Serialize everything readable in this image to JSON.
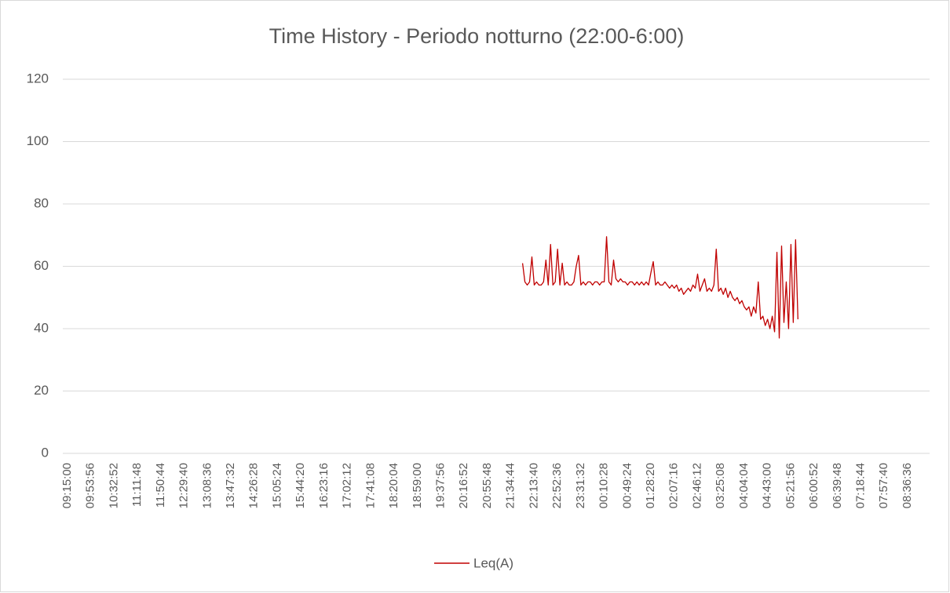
{
  "chart_data": {
    "type": "line",
    "title": "Time History - Periodo notturno (22:00-6:00)",
    "categories": [
      "09:15:00",
      null,
      null,
      null,
      null,
      null,
      null,
      null,
      null,
      null,
      "09:53:56",
      null,
      null,
      null,
      null,
      null,
      null,
      null,
      null,
      null,
      "10:32:52",
      null,
      null,
      null,
      null,
      null,
      null,
      null,
      null,
      null,
      "11:11:48",
      null,
      null,
      null,
      null,
      null,
      null,
      null,
      null,
      null,
      "11:50:44",
      null,
      null,
      null,
      null,
      null,
      null,
      null,
      null,
      null,
      "12:29:40",
      null,
      null,
      null,
      null,
      null,
      null,
      null,
      null,
      null,
      "13:08:36",
      null,
      null,
      null,
      null,
      null,
      null,
      null,
      null,
      null,
      "13:47:32",
      null,
      null,
      null,
      null,
      null,
      null,
      null,
      null,
      null,
      "14:26:28",
      null,
      null,
      null,
      null,
      null,
      null,
      null,
      null,
      null,
      "15:05:24",
      null,
      null,
      null,
      null,
      null,
      null,
      null,
      null,
      null,
      "15:44:20",
      null,
      null,
      null,
      null,
      null,
      null,
      null,
      null,
      null,
      "16:23:16",
      null,
      null,
      null,
      null,
      null,
      null,
      null,
      null,
      null,
      "17:02:12",
      null,
      null,
      null,
      null,
      null,
      null,
      null,
      null,
      null,
      "17:41:08",
      null,
      null,
      null,
      null,
      null,
      null,
      null,
      null,
      null,
      "18:20:04",
      null,
      null,
      null,
      null,
      null,
      null,
      null,
      null,
      null,
      "18:59:00",
      null,
      null,
      null,
      null,
      null,
      null,
      null,
      null,
      null,
      "19:37:56",
      null,
      null,
      null,
      null,
      null,
      null,
      null,
      null,
      null,
      "20:16:52",
      null,
      null,
      null,
      null,
      null,
      null,
      null,
      null,
      null,
      "20:55:48",
      null,
      null,
      null,
      null,
      null,
      null,
      null,
      null,
      null,
      "21:34:44",
      null,
      null,
      null,
      null,
      null,
      null,
      null,
      null,
      null,
      "22:13:40",
      null,
      null,
      null,
      null,
      null,
      null,
      null,
      null,
      null,
      "22:52:36",
      null,
      null,
      null,
      null,
      null,
      null,
      null,
      null,
      null,
      "23:31:32",
      null,
      null,
      null,
      null,
      null,
      null,
      null,
      null,
      null,
      "00:10:28",
      null,
      null,
      null,
      null,
      null,
      null,
      null,
      null,
      null,
      "00:49:24",
      null,
      null,
      null,
      null,
      null,
      null,
      null,
      null,
      null,
      "01:28:20",
      null,
      null,
      null,
      null,
      null,
      null,
      null,
      null,
      null,
      "02:07:16",
      null,
      null,
      null,
      null,
      null,
      null,
      null,
      null,
      null,
      "02:46:12",
      null,
      null,
      null,
      null,
      null,
      null,
      null,
      null,
      null,
      "03:25:08",
      null,
      null,
      null,
      null,
      null,
      null,
      null,
      null,
      null,
      "04:04:04",
      null,
      null,
      null,
      null,
      null,
      null,
      null,
      null,
      null,
      "04:43:00",
      null,
      null,
      null,
      null,
      null,
      null,
      null,
      null,
      null,
      "05:21:56",
      null,
      null,
      null,
      null,
      null,
      null,
      null,
      null,
      null,
      "06:00:52",
      null,
      null,
      null,
      null,
      null,
      null,
      null,
      null,
      null,
      "06:39:48",
      null,
      null,
      null,
      null,
      null,
      null,
      null,
      null,
      null,
      "07:18:44",
      null,
      null,
      null,
      null,
      null,
      null,
      null,
      null,
      null,
      "07:57:40",
      null,
      null,
      null,
      null,
      null,
      null,
      null,
      null,
      null,
      "08:36:36"
    ],
    "series": [
      {
        "name": "Leq(A)",
        "color": "#c00000",
        "values": [
          null,
          null,
          null,
          null,
          null,
          null,
          null,
          null,
          null,
          null,
          null,
          null,
          null,
          null,
          null,
          null,
          null,
          null,
          null,
          null,
          null,
          null,
          null,
          null,
          null,
          null,
          null,
          null,
          null,
          null,
          null,
          null,
          null,
          null,
          null,
          null,
          null,
          null,
          null,
          null,
          null,
          null,
          null,
          null,
          null,
          null,
          null,
          null,
          null,
          null,
          null,
          null,
          null,
          null,
          null,
          null,
          null,
          null,
          null,
          null,
          null,
          null,
          null,
          null,
          null,
          null,
          null,
          null,
          null,
          null,
          null,
          null,
          null,
          null,
          null,
          null,
          null,
          null,
          null,
          null,
          null,
          null,
          null,
          null,
          null,
          null,
          null,
          null,
          null,
          null,
          null,
          null,
          null,
          null,
          null,
          null,
          null,
          null,
          null,
          null,
          null,
          null,
          null,
          null,
          null,
          null,
          null,
          null,
          null,
          null,
          null,
          null,
          null,
          null,
          null,
          null,
          null,
          null,
          null,
          null,
          null,
          null,
          null,
          null,
          null,
          null,
          null,
          null,
          null,
          null,
          null,
          null,
          null,
          null,
          null,
          null,
          null,
          null,
          null,
          null,
          null,
          null,
          null,
          null,
          null,
          null,
          null,
          null,
          null,
          null,
          null,
          null,
          null,
          null,
          null,
          null,
          null,
          null,
          null,
          null,
          null,
          null,
          null,
          null,
          null,
          null,
          null,
          null,
          null,
          null,
          null,
          null,
          null,
          null,
          null,
          null,
          null,
          null,
          null,
          null,
          null,
          null,
          null,
          null,
          null,
          null,
          null,
          null,
          null,
          null,
          null,
          null,
          null,
          null,
          null,
          61,
          55,
          54,
          55,
          63,
          54,
          55,
          54,
          54,
          55,
          62,
          54,
          67,
          54,
          55,
          65.5,
          54,
          61,
          54,
          55,
          54,
          54,
          55,
          60,
          63.5,
          54,
          55,
          54,
          55,
          55,
          54,
          55,
          55,
          54,
          55,
          55,
          69.5,
          55,
          54,
          62,
          56,
          55,
          56,
          55,
          55,
          54,
          55,
          55,
          54,
          55,
          54,
          55,
          54,
          55,
          54,
          58,
          61.5,
          54,
          55,
          54,
          54,
          55,
          54,
          53,
          54,
          53,
          54,
          52,
          53,
          51,
          52,
          53,
          52,
          54,
          53,
          57.5,
          52,
          54,
          56,
          52,
          53,
          52,
          54,
          65.5,
          52,
          53,
          51,
          53,
          50,
          52,
          50,
          49,
          50,
          48,
          49,
          47,
          46,
          47,
          44,
          47,
          45,
          55,
          43,
          44,
          41,
          43,
          40,
          44,
          39,
          64.5,
          37,
          66.5,
          42,
          55,
          40,
          67,
          42,
          68.5,
          43,
          null,
          null,
          null,
          null,
          null,
          null,
          null,
          null,
          null,
          null,
          null,
          null,
          null,
          null,
          null,
          null,
          null,
          null,
          null,
          null,
          null,
          null,
          null,
          null,
          null,
          null,
          null,
          null,
          null,
          null,
          null,
          null,
          null,
          null,
          null,
          null,
          null,
          null,
          null,
          null,
          null,
          null,
          null,
          null,
          null,
          null,
          null
        ]
      }
    ],
    "ylim": [
      0,
      120
    ],
    "yticks": [
      0,
      20,
      40,
      60,
      80,
      100,
      120
    ],
    "grid": true,
    "legend": "bottom"
  }
}
